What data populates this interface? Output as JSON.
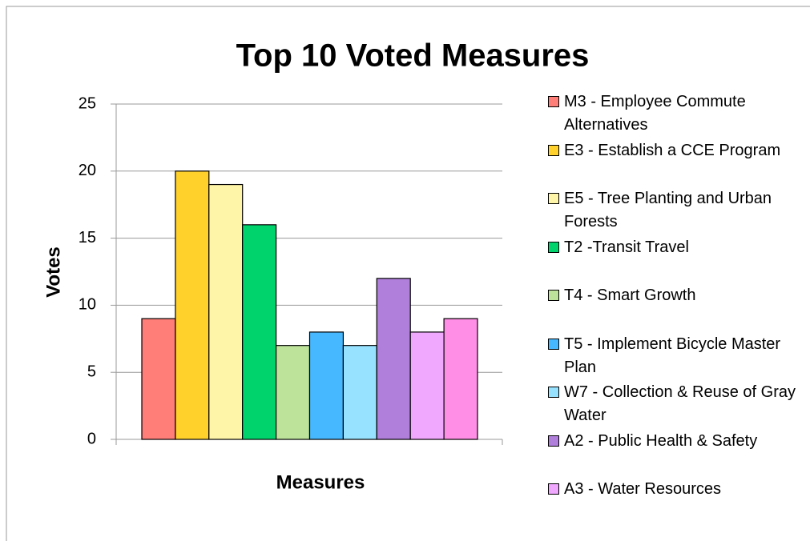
{
  "chart_data": {
    "type": "bar",
    "title": "Top 10 Voted Measures",
    "y_label": "Votes",
    "x_label": "Measures",
    "ylim": [
      0,
      25
    ],
    "yticks": [
      0,
      5,
      10,
      15,
      20,
      25
    ],
    "grid": true,
    "series": [
      {
        "name": "M3 - Employee Commute Alternatives",
        "color": "#ff7f78",
        "values": [
          9
        ]
      },
      {
        "name": "E3 - Establish a CCE Program",
        "color": "#ffd12a",
        "values": [
          20
        ]
      },
      {
        "name": "E5 - Tree Planting and Urban Forests",
        "color": "#fff5a8",
        "values": [
          19
        ]
      },
      {
        "name": "T2 -Transit Travel",
        "color": "#00d36b",
        "values": [
          16
        ]
      },
      {
        "name": "T4 - Smart Growth",
        "color": "#bde39b",
        "values": [
          7
        ]
      },
      {
        "name": "T5 - Implement Bicycle Master Plan",
        "color": "#46b8ff",
        "values": [
          8
        ]
      },
      {
        "name": "W7 - Collection & Reuse of Gray Water",
        "color": "#96e2ff",
        "values": [
          7
        ]
      },
      {
        "name": "A2 - Public Health & Safety",
        "color": "#b07fdc",
        "values": [
          12
        ]
      },
      {
        "name": "A3 - Water Resources",
        "color": "#f0a8ff",
        "values": [
          8
        ]
      },
      {
        "name": null,
        "color": "#ff8fe6",
        "values": [
          9
        ]
      }
    ]
  }
}
